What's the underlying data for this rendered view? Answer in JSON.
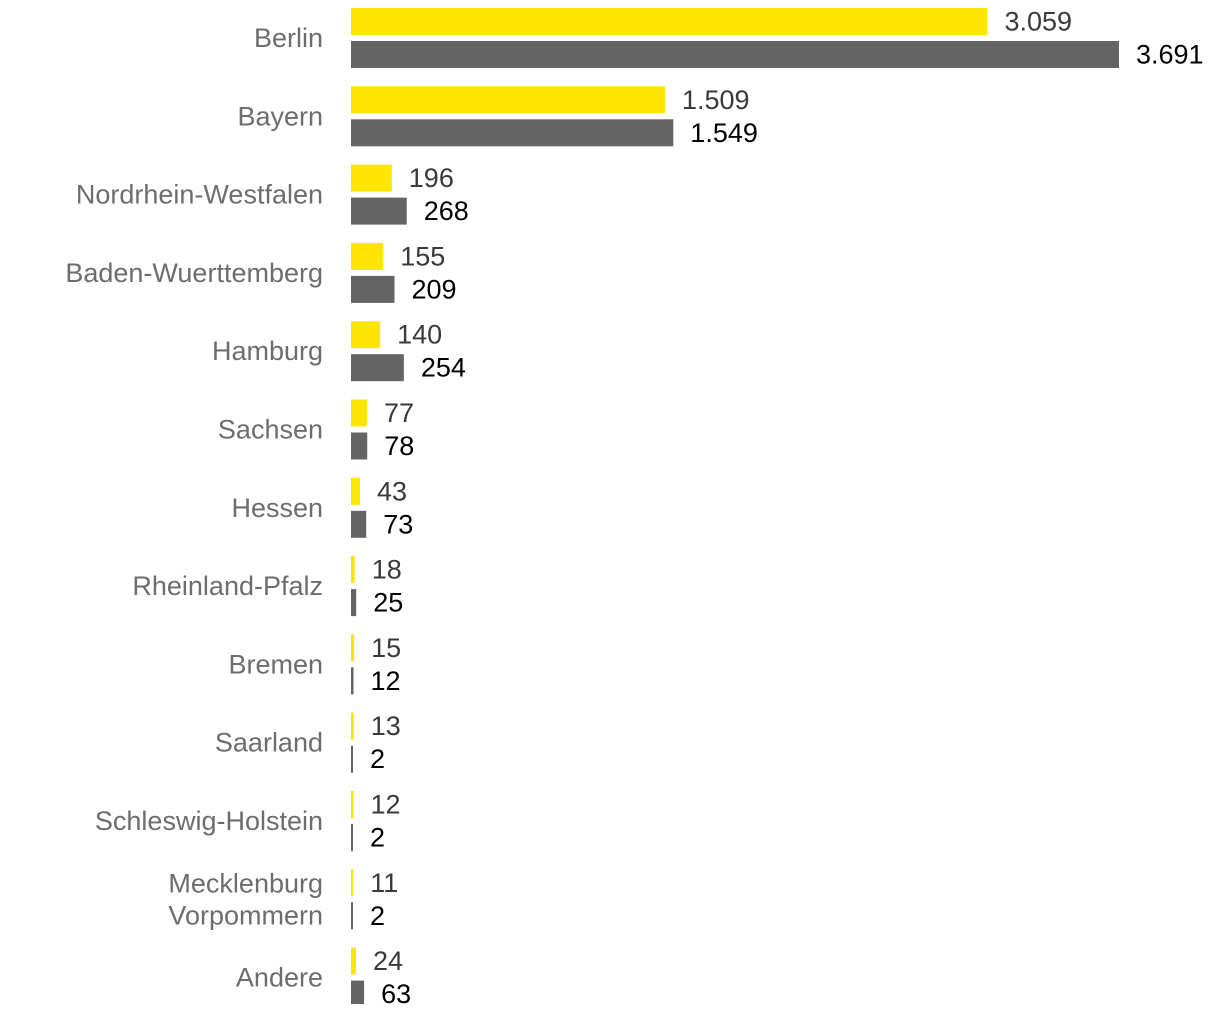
{
  "chart_data": {
    "type": "bar",
    "orientation": "horizontal",
    "categories": [
      [
        "Berlin"
      ],
      [
        "Bayern"
      ],
      [
        "Nordrhein-Westfalen"
      ],
      [
        "Baden-Wuerttemberg"
      ],
      [
        "Hamburg"
      ],
      [
        "Sachsen"
      ],
      [
        "Hessen"
      ],
      [
        "Rheinland-Pfalz"
      ],
      [
        "Bremen"
      ],
      [
        "Saarland"
      ],
      [
        "Schleswig-Holstein"
      ],
      [
        "Mecklenburg",
        "Vorpommern"
      ],
      [
        "Andere"
      ]
    ],
    "series": [
      {
        "color": "#ffe600",
        "values": [
          3059,
          1509,
          196,
          155,
          140,
          77,
          43,
          18,
          15,
          13,
          12,
          11,
          24
        ],
        "labels": [
          "3.059",
          "1.509",
          "196",
          "155",
          "140",
          "77",
          "43",
          "18",
          "15",
          "13",
          "12",
          "11",
          "24"
        ]
      },
      {
        "color": "#646464",
        "values": [
          3691,
          1549,
          268,
          209,
          254,
          78,
          73,
          25,
          12,
          2,
          2,
          2,
          63
        ],
        "labels": [
          "3.691",
          "1.549",
          "268",
          "209",
          "254",
          "78",
          "73",
          "25",
          "12",
          "2",
          "2",
          "2",
          "63"
        ]
      }
    ],
    "xlim": [
      0,
      3691
    ],
    "grid": false,
    "legend": "none",
    "title": "",
    "xlabel": "",
    "ylabel": ""
  }
}
